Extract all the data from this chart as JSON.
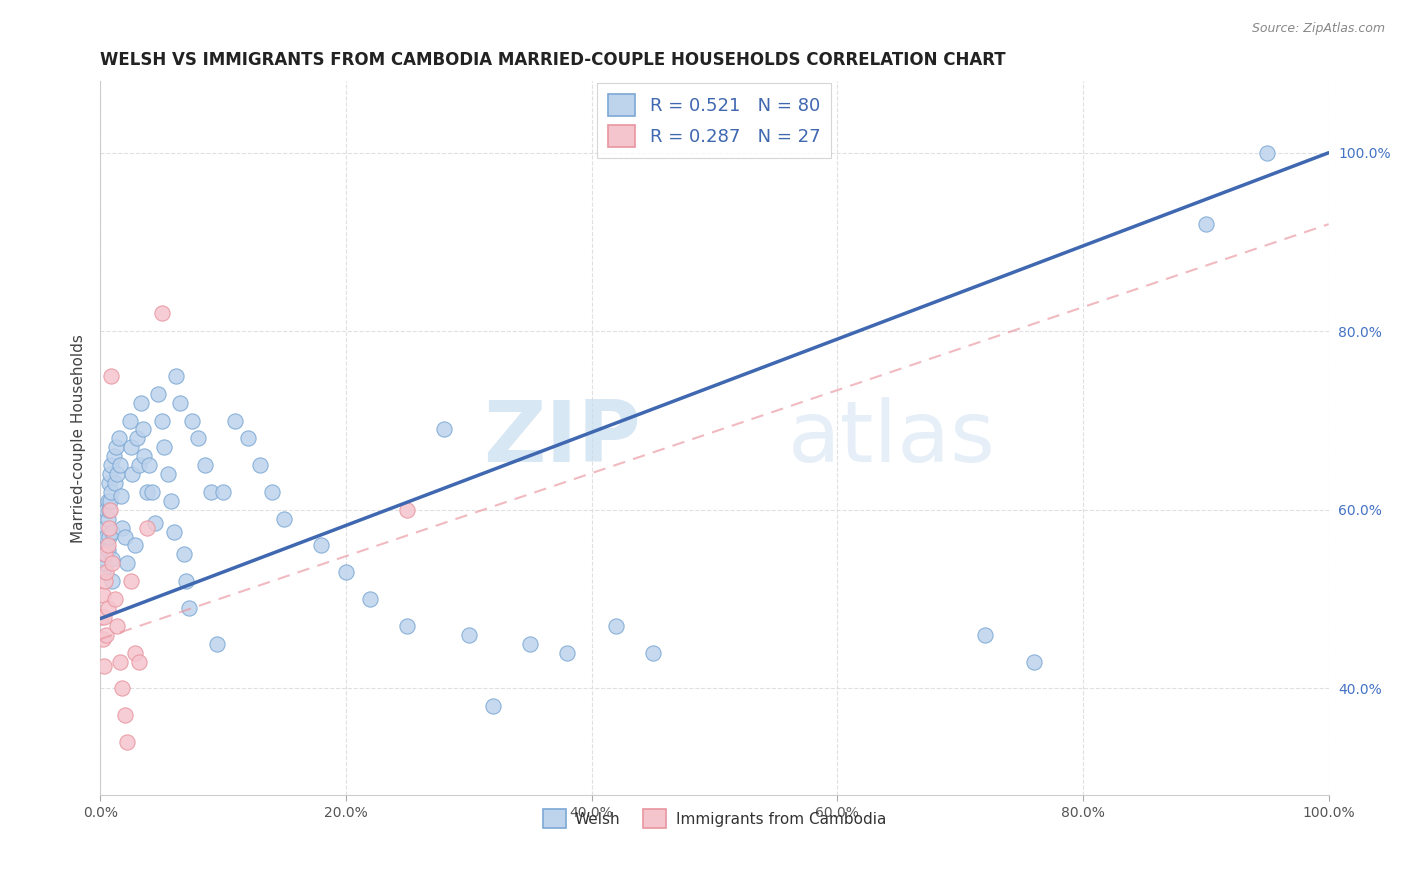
{
  "title": "WELSH VS IMMIGRANTS FROM CAMBODIA MARRIED-COUPLE HOUSEHOLDS CORRELATION CHART",
  "source": "Source: ZipAtlas.com",
  "ylabel": "Married-couple Households",
  "xlim": [
    0.0,
    1.0
  ],
  "ylim": [
    0.28,
    1.08
  ],
  "xticks": [
    0.0,
    0.2,
    0.4,
    0.6,
    0.8,
    1.0
  ],
  "yticks": [
    0.4,
    0.6,
    0.8,
    1.0
  ],
  "legend_labels": [
    "Welsh",
    "Immigrants from Cambodia"
  ],
  "welsh_R": 0.521,
  "welsh_N": 80,
  "camb_R": 0.287,
  "camb_N": 27,
  "welsh_color": "#bed3ec",
  "welsh_edge_color": "#7ca8d4",
  "welsh_line_color": "#3f68b0",
  "camb_color": "#f5c5ce",
  "camb_edge_color": "#e8959f",
  "camb_line_color": "#e8959f",
  "watermark_zip": "ZIP",
  "watermark_atlas": "atlas",
  "title_color": "#222222",
  "source_color": "#888888",
  "ytick_color": "#4472c4",
  "xtick_color": "#555555",
  "grid_color": "#e0e0e0",
  "welsh_x": [
    0.002,
    0.003,
    0.003,
    0.004,
    0.004,
    0.005,
    0.005,
    0.006,
    0.006,
    0.006,
    0.007,
    0.007,
    0.007,
    0.008,
    0.008,
    0.009,
    0.009,
    0.01,
    0.01,
    0.01,
    0.011,
    0.012,
    0.013,
    0.014,
    0.015,
    0.016,
    0.017,
    0.018,
    0.02,
    0.022,
    0.024,
    0.025,
    0.026,
    0.028,
    0.03,
    0.032,
    0.033,
    0.035,
    0.036,
    0.038,
    0.04,
    0.042,
    0.045,
    0.047,
    0.05,
    0.052,
    0.055,
    0.058,
    0.06,
    0.062,
    0.065,
    0.068,
    0.07,
    0.072,
    0.075,
    0.08,
    0.085,
    0.09,
    0.095,
    0.1,
    0.11,
    0.12,
    0.13,
    0.14,
    0.15,
    0.18,
    0.2,
    0.22,
    0.25,
    0.28,
    0.3,
    0.32,
    0.35,
    0.38,
    0.42,
    0.45,
    0.72,
    0.76,
    0.9,
    0.95
  ],
  "welsh_y": [
    0.53,
    0.56,
    0.54,
    0.58,
    0.55,
    0.6,
    0.57,
    0.61,
    0.59,
    0.555,
    0.63,
    0.6,
    0.57,
    0.64,
    0.61,
    0.65,
    0.62,
    0.575,
    0.545,
    0.52,
    0.66,
    0.63,
    0.67,
    0.64,
    0.68,
    0.65,
    0.615,
    0.58,
    0.57,
    0.54,
    0.7,
    0.67,
    0.64,
    0.56,
    0.68,
    0.65,
    0.72,
    0.69,
    0.66,
    0.62,
    0.65,
    0.62,
    0.585,
    0.73,
    0.7,
    0.67,
    0.64,
    0.61,
    0.575,
    0.75,
    0.72,
    0.55,
    0.52,
    0.49,
    0.7,
    0.68,
    0.65,
    0.62,
    0.45,
    0.62,
    0.7,
    0.68,
    0.65,
    0.62,
    0.59,
    0.56,
    0.53,
    0.5,
    0.47,
    0.69,
    0.46,
    0.38,
    0.45,
    0.44,
    0.47,
    0.44,
    0.46,
    0.43,
    0.92,
    1.0
  ],
  "camb_x": [
    0.001,
    0.002,
    0.002,
    0.003,
    0.003,
    0.004,
    0.004,
    0.005,
    0.005,
    0.006,
    0.006,
    0.007,
    0.008,
    0.009,
    0.01,
    0.012,
    0.014,
    0.016,
    0.018,
    0.02,
    0.022,
    0.025,
    0.028,
    0.032,
    0.038,
    0.05,
    0.25
  ],
  "camb_y": [
    0.48,
    0.455,
    0.505,
    0.425,
    0.48,
    0.55,
    0.52,
    0.46,
    0.53,
    0.56,
    0.49,
    0.58,
    0.6,
    0.75,
    0.54,
    0.5,
    0.47,
    0.43,
    0.4,
    0.37,
    0.34,
    0.52,
    0.44,
    0.43,
    0.58,
    0.82,
    0.6
  ],
  "welsh_line_x0": 0.0,
  "welsh_line_y0": 0.478,
  "welsh_line_x1": 1.0,
  "welsh_line_y1": 1.0,
  "camb_line_x0": 0.0,
  "camb_line_y0": 0.455,
  "camb_line_x1": 1.0,
  "camb_line_y1": 0.92
}
